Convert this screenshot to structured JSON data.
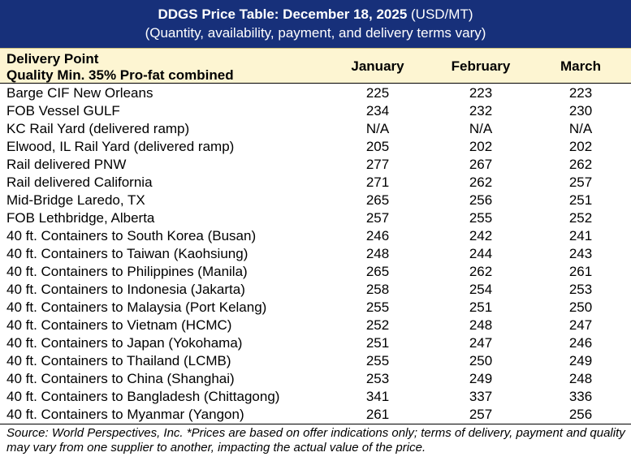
{
  "title": {
    "main_bold": "DDGS Price Table: December 18, 2025",
    "main_unit": " (USD/MT)",
    "subtitle": "(Quantity, availability, payment, and delivery terms vary)"
  },
  "header": {
    "label_line1": "Delivery Point",
    "label_line2": "Quality Min. 35% Pro-fat combined",
    "columns": [
      "January",
      "February",
      "March"
    ]
  },
  "rows": [
    {
      "name": "Barge CIF New Orleans",
      "values": [
        "225",
        "223",
        "223"
      ]
    },
    {
      "name": "FOB Vessel GULF",
      "values": [
        "234",
        "232",
        "230"
      ]
    },
    {
      "name": "KC Rail Yard (delivered ramp)",
      "values": [
        "N/A",
        "N/A",
        "N/A"
      ]
    },
    {
      "name": "Elwood, IL Rail Yard (delivered ramp)",
      "values": [
        "205",
        "202",
        "202"
      ]
    },
    {
      "name": "Rail delivered PNW",
      "values": [
        "277",
        "267",
        "262"
      ]
    },
    {
      "name": "Rail delivered California",
      "values": [
        "271",
        "262",
        "257"
      ]
    },
    {
      "name": "Mid-Bridge Laredo, TX",
      "values": [
        "265",
        "256",
        "251"
      ]
    },
    {
      "name": "FOB Lethbridge, Alberta",
      "values": [
        "257",
        "255",
        "252"
      ]
    },
    {
      "name": "40 ft. Containers to South Korea (Busan)",
      "values": [
        "246",
        "242",
        "241"
      ]
    },
    {
      "name": "40 ft. Containers to Taiwan (Kaohsiung)",
      "values": [
        "248",
        "244",
        "243"
      ]
    },
    {
      "name": "40 ft. Containers to Philippines (Manila)",
      "values": [
        "265",
        "262",
        "261"
      ]
    },
    {
      "name": "40 ft. Containers to Indonesia (Jakarta)",
      "values": [
        "258",
        "254",
        "253"
      ]
    },
    {
      "name": "40 ft. Containers to Malaysia (Port Kelang)",
      "values": [
        "255",
        "251",
        "250"
      ]
    },
    {
      "name": "40 ft. Containers to Vietnam (HCMC)",
      "values": [
        "252",
        "248",
        "247"
      ]
    },
    {
      "name": "40 ft. Containers to Japan (Yokohama)",
      "values": [
        "251",
        "247",
        "246"
      ]
    },
    {
      "name": "40 ft. Containers to Thailand (LCMB)",
      "values": [
        "255",
        "250",
        "249"
      ]
    },
    {
      "name": "40 ft. Containers to China (Shanghai)",
      "values": [
        "253",
        "249",
        "248"
      ]
    },
    {
      "name": "40 ft. Containers to Bangladesh (Chittagong)",
      "values": [
        "341",
        "337",
        "336"
      ]
    },
    {
      "name": "40 ft. Containers to Myanmar (Yangon)",
      "values": [
        "261",
        "257",
        "256"
      ]
    }
  ],
  "footer": {
    "source": "Source: World Perspectives, Inc. *Prices are based on offer indications only; terms of delivery, payment and quality may vary from one supplier to another, impacting the actual value of the price."
  },
  "colors": {
    "title_bg": "#17307a",
    "header_bg": "#fdf5d2"
  }
}
